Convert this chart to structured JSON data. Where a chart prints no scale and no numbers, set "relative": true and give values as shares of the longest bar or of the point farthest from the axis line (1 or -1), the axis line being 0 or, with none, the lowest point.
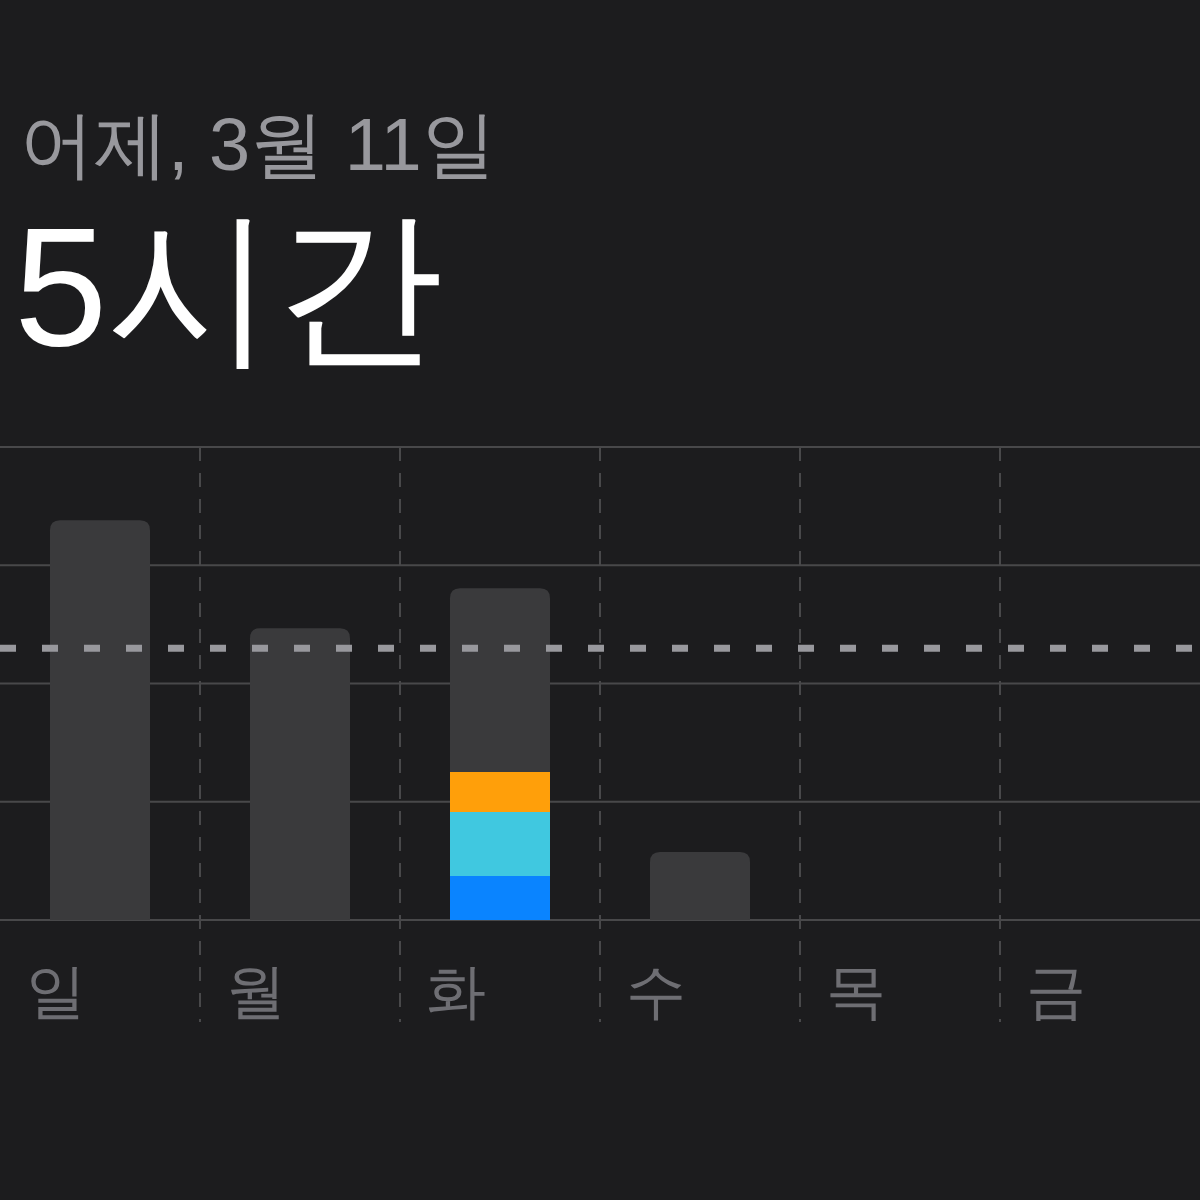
{
  "chart_data": {
    "type": "bar",
    "title": "5시간",
    "subtitle": "어제, 3월 11일",
    "categories": [
      "일",
      "월",
      "화",
      "수",
      "목",
      "금"
    ],
    "stacked": true,
    "relative": true,
    "series": [
      {
        "color": "#0a84ff",
        "values": [
          null,
          null,
          0.11,
          null,
          null,
          null
        ]
      },
      {
        "color": "#40c8e0",
        "values": [
          null,
          null,
          0.16,
          null,
          null,
          null
        ]
      },
      {
        "color": "#ff9f0a",
        "values": [
          null,
          null,
          0.1,
          null,
          null,
          null
        ]
      },
      {
        "color": "#3a3a3c",
        "values": [
          1,
          0.73,
          0.46,
          0.17,
          null,
          null
        ]
      }
    ],
    "ref_lines": [
      {
        "axis": "y",
        "value": 0.68,
        "color": "#98989d",
        "line_style": "dashed"
      }
    ],
    "grid": true
  }
}
